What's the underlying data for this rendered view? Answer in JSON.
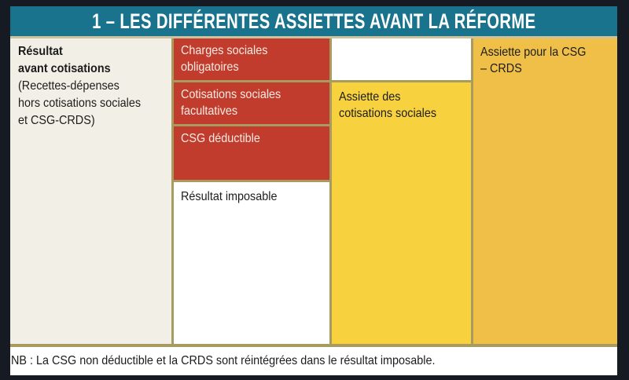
{
  "header": {
    "title": "1 – LES DIFFÉRENTES ASSIETTES AVANT LA RÉFORME"
  },
  "columns": {
    "result_before": {
      "title_line1": "Résultat",
      "title_line2": "avant cotisations",
      "subtitle_line1": "(Recettes-dépenses",
      "subtitle_line2": "hors cotisations sociales",
      "subtitle_line3": "et CSG-CRDS)"
    },
    "middle_blocks": {
      "charges": {
        "line1": "Charges sociales",
        "line2": "obligatoires"
      },
      "cotisations": {
        "line1": "Cotisations sociales",
        "line2": "facultatives"
      },
      "csg_deductible": {
        "line1": "CSG déductible"
      },
      "resultat_imposable": {
        "line1": "Résultat imposable"
      }
    },
    "assiette_cotisations": {
      "line1": "Assiette des",
      "line2": "cotisations sociales"
    },
    "assiette_csg": {
      "line1": "Assiette pour la CSG",
      "line2": "– CRDS"
    }
  },
  "note": "NB : La CSG non déductible et la CRDS sont réintégrées dans le résultat imposable.",
  "colors": {
    "frame": "#151A23",
    "header_bg": "#19738C",
    "header_text": "#FFFFFF",
    "column_result_bg": "#F1EFE6",
    "block_red": "#C23C2E",
    "block_red_text": "#F4ECE3",
    "assiette_cotisations_yellow": "#F7D23E",
    "assiette_csg_yellow": "#EFBF48",
    "border_olive": "#A79B60",
    "border_light": "#CCC29D",
    "text_dark": "#1C1C1A"
  }
}
